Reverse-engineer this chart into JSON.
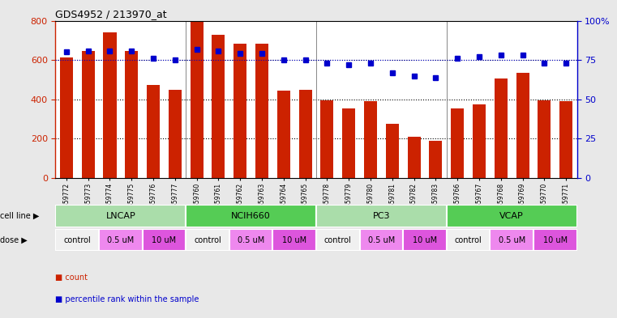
{
  "title": "GDS4952 / 213970_at",
  "samples": [
    "GSM1359772",
    "GSM1359773",
    "GSM1359774",
    "GSM1359775",
    "GSM1359776",
    "GSM1359777",
    "GSM1359760",
    "GSM1359761",
    "GSM1359762",
    "GSM1359763",
    "GSM1359764",
    "GSM1359765",
    "GSM1359778",
    "GSM1359779",
    "GSM1359780",
    "GSM1359781",
    "GSM1359782",
    "GSM1359783",
    "GSM1359766",
    "GSM1359767",
    "GSM1359768",
    "GSM1359769",
    "GSM1359770",
    "GSM1359771"
  ],
  "counts": [
    615,
    645,
    740,
    645,
    475,
    450,
    800,
    730,
    685,
    685,
    445,
    450,
    395,
    355,
    390,
    275,
    210,
    190,
    355,
    375,
    505,
    535,
    395,
    390
  ],
  "percentile_ranks": [
    80,
    81,
    81,
    81,
    76,
    75,
    82,
    81,
    79,
    79,
    75,
    75,
    73,
    72,
    73,
    67,
    65,
    64,
    76,
    77,
    78,
    78,
    73,
    73
  ],
  "bar_color": "#cc2200",
  "dot_color": "#0000cc",
  "cell_line_groups": [
    {
      "name": "LNCAP",
      "start": 0,
      "end": 6,
      "color": "#aaddaa"
    },
    {
      "name": "NCIH660",
      "start": 6,
      "end": 12,
      "color": "#55cc55"
    },
    {
      "name": "PC3",
      "start": 12,
      "end": 18,
      "color": "#aaddaa"
    },
    {
      "name": "VCAP",
      "start": 18,
      "end": 24,
      "color": "#55cc55"
    }
  ],
  "dose_groups": [
    {
      "name": "control",
      "start": 0,
      "end": 2,
      "color": "#f0f0f0"
    },
    {
      "name": "0.5 uM",
      "start": 2,
      "end": 4,
      "color": "#ee88ee"
    },
    {
      "name": "10 uM",
      "start": 4,
      "end": 6,
      "color": "#dd55dd"
    },
    {
      "name": "control",
      "start": 6,
      "end": 8,
      "color": "#f0f0f0"
    },
    {
      "name": "0.5 uM",
      "start": 8,
      "end": 10,
      "color": "#ee88ee"
    },
    {
      "name": "10 uM",
      "start": 10,
      "end": 12,
      "color": "#dd55dd"
    },
    {
      "name": "control",
      "start": 12,
      "end": 14,
      "color": "#f0f0f0"
    },
    {
      "name": "0.5 uM",
      "start": 14,
      "end": 16,
      "color": "#ee88ee"
    },
    {
      "name": "10 uM",
      "start": 16,
      "end": 18,
      "color": "#dd55dd"
    },
    {
      "name": "control",
      "start": 18,
      "end": 20,
      "color": "#f0f0f0"
    },
    {
      "name": "0.5 uM",
      "start": 20,
      "end": 22,
      "color": "#ee88ee"
    },
    {
      "name": "10 uM",
      "start": 22,
      "end": 24,
      "color": "#dd55dd"
    }
  ],
  "ylim_left": [
    0,
    800
  ],
  "ylim_right": [
    0,
    100
  ],
  "yticks_left": [
    0,
    200,
    400,
    600,
    800
  ],
  "yticks_right": [
    0,
    25,
    50,
    75,
    100
  ],
  "ytick_labels_right": [
    "0",
    "25",
    "50",
    "75",
    "100%"
  ],
  "background_color": "#e8e8e8",
  "plot_bg": "#ffffff",
  "bar_color_hex": "#cc2200",
  "dot_color_hex": "#0000cc",
  "legend_count_color": "#cc2200",
  "legend_dot_color": "#0000cc",
  "grid_color": "#000000",
  "separator_color": "#888888"
}
